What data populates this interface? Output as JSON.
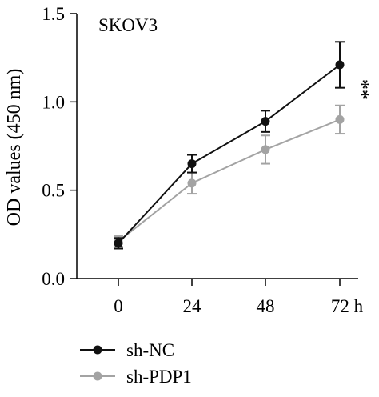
{
  "chart_data": {
    "type": "line",
    "title": "",
    "panel_label": "SKOV3",
    "xlabel": "",
    "ylabel": "OD values (450 nm)",
    "x": [
      0,
      24,
      48,
      72
    ],
    "x_tick_labels": [
      "0",
      "24",
      "48",
      "72 h"
    ],
    "ylim": [
      0.0,
      1.5
    ],
    "y_ticks": [
      0.0,
      0.5,
      1.0,
      1.5
    ],
    "y_tick_labels": [
      "0.0",
      "0.5",
      "1.0",
      "1.5"
    ],
    "grid": false,
    "legend_position": "bottom-left",
    "series": [
      {
        "name": "sh-NC",
        "color": "#111111",
        "values": [
          0.2,
          0.65,
          0.89,
          1.21
        ],
        "errors": [
          0.03,
          0.05,
          0.06,
          0.13
        ]
      },
      {
        "name": "sh-PDP1",
        "color": "#a3a3a3",
        "values": [
          0.21,
          0.54,
          0.73,
          0.9
        ],
        "errors": [
          0.03,
          0.06,
          0.08,
          0.08
        ]
      }
    ],
    "annotations": [
      {
        "text": "**",
        "x": 72,
        "y": 1.07
      }
    ]
  }
}
